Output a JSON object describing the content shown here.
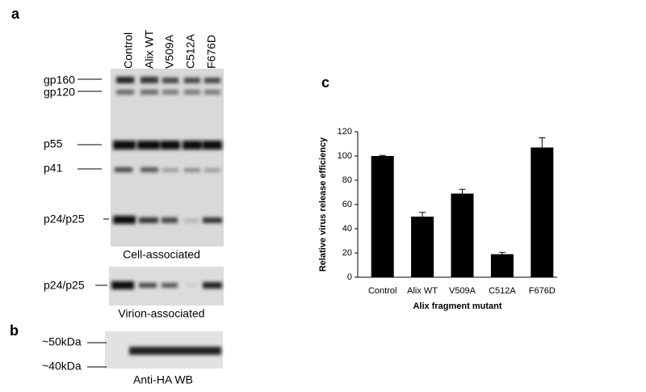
{
  "panel_labels": [
    "a",
    "b",
    "c"
  ],
  "blot_a": {
    "lanes": [
      "Control",
      "Alix WT",
      "V509A",
      "C512A",
      "F676D"
    ],
    "bands": [
      "gp160",
      "gp120",
      "p55",
      "p41",
      "p24/p25"
    ],
    "caption": "Cell-associated",
    "virion_band": "p24/p25",
    "virion_caption": "Virion-associated"
  },
  "blot_b": {
    "markers": [
      "~50kDa",
      "~40kDa"
    ],
    "caption": "Anti-HA WB"
  },
  "chart_data": {
    "type": "bar",
    "ylabel": "Relative virus release efficiency",
    "xlabel": "Alix fragment mutant",
    "categories": [
      "Control",
      "Alix WT",
      "V509A",
      "C512A",
      "F676D"
    ],
    "values": [
      100,
      50,
      69,
      19,
      107
    ],
    "errors": [
      0.5,
      3.5,
      3.5,
      1.5,
      8
    ],
    "color": "#000000",
    "ylim": [
      0,
      120
    ],
    "yticks": [
      0,
      20,
      40,
      60,
      80,
      100,
      120
    ]
  }
}
